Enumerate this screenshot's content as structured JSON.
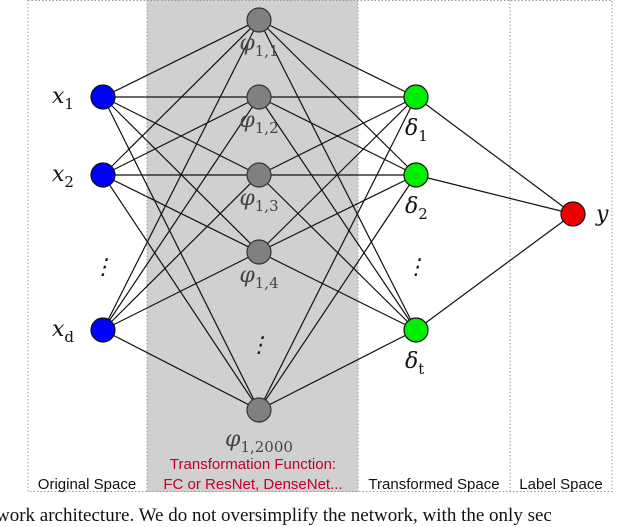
{
  "colors": {
    "input_node": "#0000ff",
    "hidden_node": "#808080",
    "transformed_node": "#00ee00",
    "output_node": "#ee0000",
    "transform_region": "#d0d0d0",
    "transform_label": "#c0002a"
  },
  "input_nodes": [
    {
      "var": "x",
      "sub": "1"
    },
    {
      "var": "x",
      "sub": "2"
    },
    {
      "var": "x",
      "sub": "d"
    }
  ],
  "hidden_nodes": [
    {
      "var": "φ",
      "sub": "1,1"
    },
    {
      "var": "φ",
      "sub": "1,2"
    },
    {
      "var": "φ",
      "sub": "1,3"
    },
    {
      "var": "φ",
      "sub": "1,4"
    },
    {
      "var": "φ",
      "sub": "1,2000"
    }
  ],
  "transformed_nodes": [
    {
      "var": "δ",
      "sub": "1"
    },
    {
      "var": "δ",
      "sub": "2"
    },
    {
      "var": "δ",
      "sub": "t"
    }
  ],
  "output_node": {
    "var": "y"
  },
  "ellipsis": "⋮",
  "regions": {
    "original": "Original Space",
    "transform_line1": "Transformation Function:",
    "transform_line2": "FC or ResNet, DenseNet...",
    "transformed": "Transformed Space",
    "label": "Label Space"
  },
  "caption": "work architecture. We do not oversimplify the network, with the only sec"
}
